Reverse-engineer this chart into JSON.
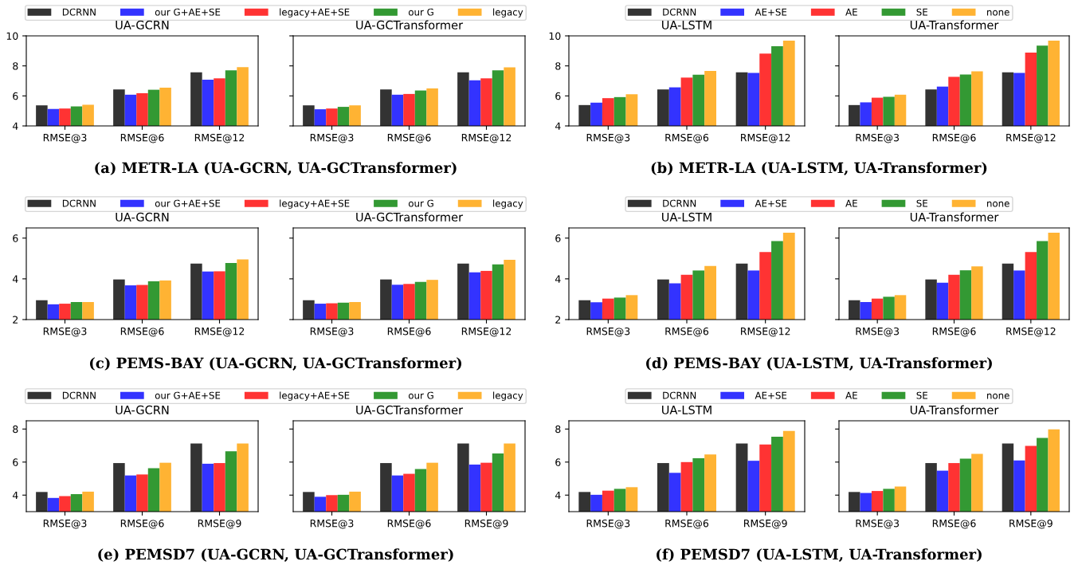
{
  "chart_data": [
    {
      "type": "bar",
      "title": "UA-GCRN",
      "categories": [
        "RMSE@3",
        "RMSE@6",
        "RMSE@12"
      ],
      "ylim": [
        4,
        10
      ],
      "yticks": [
        4,
        6,
        8,
        10
      ],
      "legend": "top right",
      "annotations": [
        "(a) METR-LA (UA-GCRN, UA-GCTransformer)"
      ],
      "series": [
        {
          "name": "DCRNN",
          "color": "#333333",
          "values": [
            5.37,
            6.43,
            7.57
          ]
        },
        {
          "name": "our G+AE+SE",
          "color": "#3333ff",
          "values": [
            5.13,
            6.08,
            7.08
          ]
        },
        {
          "name": "legacy+AE+SE",
          "color": "#ff3333",
          "values": [
            5.16,
            6.18,
            7.17
          ]
        },
        {
          "name": "our G",
          "color": "#339933",
          "values": [
            5.3,
            6.41,
            7.71
          ]
        },
        {
          "name": "legacy",
          "color": "#ffb333",
          "values": [
            5.41,
            6.55,
            7.92
          ]
        }
      ]
    },
    {
      "type": "bar",
      "title": "UA-GCTransformer",
      "categories": [
        "RMSE@3",
        "RMSE@6",
        "RMSE@12"
      ],
      "ylim": [
        4,
        10
      ],
      "yticks": [
        4,
        6,
        8,
        10
      ],
      "tick_labels": "x",
      "series": [
        {
          "color": "#333333",
          "values": [
            5.37,
            6.43,
            7.57
          ]
        },
        {
          "color": "#3333ff",
          "values": [
            5.11,
            6.08,
            7.04
          ]
        },
        {
          "color": "#ff3333",
          "values": [
            5.16,
            6.13,
            7.17
          ]
        },
        {
          "color": "#339933",
          "values": [
            5.27,
            6.36,
            7.71
          ]
        },
        {
          "color": "#ffb333",
          "values": [
            5.37,
            6.5,
            7.9
          ]
        }
      ]
    },
    {
      "type": "bar",
      "title": "UA-LSTM",
      "categories": [
        "RMSE@3",
        "RMSE@6",
        "RMSE@12"
      ],
      "ylim": [
        4,
        10
      ],
      "yticks": [
        4,
        6,
        8,
        10
      ],
      "legend": "top right",
      "annotations": [
        "(b) METR-LA (UA-LSTM, UA-Transformer)"
      ],
      "series": [
        {
          "name": "DCRNN",
          "color": "#333333",
          "values": [
            5.39,
            6.43,
            7.57
          ]
        },
        {
          "name": "AE+SE",
          "color": "#3333ff",
          "values": [
            5.55,
            6.57,
            7.53
          ]
        },
        {
          "name": "AE",
          "color": "#ff3333",
          "values": [
            5.85,
            7.22,
            8.82
          ]
        },
        {
          "name": "SE",
          "color": "#339933",
          "values": [
            5.92,
            7.41,
            9.31
          ]
        },
        {
          "name": "none",
          "color": "#ffb333",
          "values": [
            6.11,
            7.66,
            9.68
          ]
        }
      ]
    },
    {
      "type": "bar",
      "title": "UA-Transformer",
      "categories": [
        "RMSE@3",
        "RMSE@6",
        "RMSE@12"
      ],
      "ylim": [
        4,
        10
      ],
      "yticks": [
        4,
        6,
        8,
        10
      ],
      "tick_labels": "x",
      "series": [
        {
          "color": "#333333",
          "values": [
            5.39,
            6.43,
            7.57
          ]
        },
        {
          "color": "#3333ff",
          "values": [
            5.57,
            6.62,
            7.53
          ]
        },
        {
          "color": "#ff3333",
          "values": [
            5.88,
            7.27,
            8.88
          ]
        },
        {
          "color": "#339933",
          "values": [
            5.94,
            7.43,
            9.35
          ]
        },
        {
          "color": "#ffb333",
          "values": [
            6.08,
            7.64,
            9.68
          ]
        }
      ]
    },
    {
      "type": "bar",
      "title": "UA-GCRN",
      "categories": [
        "RMSE@3",
        "RMSE@6",
        "RMSE@12"
      ],
      "ylim": [
        2,
        6.5
      ],
      "yticks": [
        2,
        4,
        6
      ],
      "legend": "top right",
      "annotations": [
        "(c) PEMS-BAY (UA-GCRN, UA-GCTransformer)"
      ],
      "series": [
        {
          "name": "DCRNN",
          "color": "#333333",
          "values": [
            2.95,
            3.97,
            4.75
          ]
        },
        {
          "name": "our G+AE+SE",
          "color": "#3333ff",
          "values": [
            2.75,
            3.68,
            4.36
          ]
        },
        {
          "name": "legacy+AE+SE",
          "color": "#ff3333",
          "values": [
            2.78,
            3.7,
            4.37
          ]
        },
        {
          "name": "our G",
          "color": "#339933",
          "values": [
            2.86,
            3.88,
            4.78
          ]
        },
        {
          "name": "legacy",
          "color": "#ffb333",
          "values": [
            2.86,
            3.92,
            4.95
          ]
        }
      ]
    },
    {
      "type": "bar",
      "title": "UA-GCTransformer",
      "categories": [
        "RMSE@3",
        "RMSE@6",
        "RMSE@12"
      ],
      "ylim": [
        2,
        6.5
      ],
      "yticks": [
        2,
        4,
        6
      ],
      "tick_labels": "x",
      "series": [
        {
          "color": "#333333",
          "values": [
            2.95,
            3.97,
            4.75
          ]
        },
        {
          "color": "#3333ff",
          "values": [
            2.78,
            3.71,
            4.32
          ]
        },
        {
          "color": "#ff3333",
          "values": [
            2.8,
            3.75,
            4.39
          ]
        },
        {
          "color": "#339933",
          "values": [
            2.83,
            3.85,
            4.71
          ]
        },
        {
          "color": "#ffb333",
          "values": [
            2.86,
            3.95,
            4.93
          ]
        }
      ]
    },
    {
      "type": "bar",
      "title": "UA-LSTM",
      "categories": [
        "RMSE@3",
        "RMSE@6",
        "RMSE@12"
      ],
      "ylim": [
        2,
        6.5
      ],
      "yticks": [
        2,
        4,
        6
      ],
      "legend": "top right",
      "annotations": [
        "(d) PEMS-BAY (UA-LSTM, UA-Transformer)"
      ],
      "series": [
        {
          "name": "DCRNN",
          "color": "#333333",
          "values": [
            2.95,
            3.97,
            4.75
          ]
        },
        {
          "name": "AE+SE",
          "color": "#3333ff",
          "values": [
            2.85,
            3.78,
            4.41
          ]
        },
        {
          "name": "AE",
          "color": "#ff3333",
          "values": [
            3.03,
            4.2,
            5.32
          ]
        },
        {
          "name": "SE",
          "color": "#339933",
          "values": [
            3.08,
            4.41,
            5.85
          ]
        },
        {
          "name": "none",
          "color": "#ffb333",
          "values": [
            3.2,
            4.63,
            6.27
          ]
        }
      ]
    },
    {
      "type": "bar",
      "title": "UA-Transformer",
      "categories": [
        "RMSE@3",
        "RMSE@6",
        "RMSE@12"
      ],
      "ylim": [
        2,
        6.5
      ],
      "yticks": [
        2,
        4,
        6
      ],
      "tick_labels": "x",
      "series": [
        {
          "color": "#333333",
          "values": [
            2.95,
            3.97,
            4.75
          ]
        },
        {
          "color": "#3333ff",
          "values": [
            2.86,
            3.81,
            4.41
          ]
        },
        {
          "color": "#ff3333",
          "values": [
            3.03,
            4.2,
            5.32
          ]
        },
        {
          "color": "#339933",
          "values": [
            3.12,
            4.42,
            5.85
          ]
        },
        {
          "color": "#ffb333",
          "values": [
            3.2,
            4.61,
            6.27
          ]
        }
      ]
    },
    {
      "type": "bar",
      "title": "UA-GCRN",
      "categories": [
        "RMSE@3",
        "RMSE@6",
        "RMSE@9"
      ],
      "ylim": [
        3,
        8.5
      ],
      "yticks": [
        4,
        6,
        8
      ],
      "legend": "top right",
      "annotations": [
        "(e) PEMSD7 (UA-GCRN, UA-GCTransformer)"
      ],
      "series": [
        {
          "name": "DCRNN",
          "color": "#333333",
          "values": [
            4.19,
            5.94,
            7.13
          ]
        },
        {
          "name": "our G+AE+SE",
          "color": "#3333ff",
          "values": [
            3.83,
            5.19,
            5.9
          ]
        },
        {
          "name": "legacy+AE+SE",
          "color": "#ff3333",
          "values": [
            3.94,
            5.25,
            5.94
          ]
        },
        {
          "name": "our G",
          "color": "#339933",
          "values": [
            4.06,
            5.63,
            6.65
          ]
        },
        {
          "name": "legacy",
          "color": "#ffb333",
          "values": [
            4.21,
            5.96,
            7.13
          ]
        }
      ]
    },
    {
      "type": "bar",
      "title": "UA-GCTransformer",
      "categories": [
        "RMSE@3",
        "RMSE@6",
        "RMSE@9"
      ],
      "ylim": [
        3,
        8.5
      ],
      "yticks": [
        4,
        6,
        8
      ],
      "tick_labels": "x",
      "series": [
        {
          "color": "#333333",
          "values": [
            4.19,
            5.94,
            7.13
          ]
        },
        {
          "color": "#3333ff",
          "values": [
            3.9,
            5.19,
            5.85
          ]
        },
        {
          "color": "#ff3333",
          "values": [
            4.0,
            5.29,
            5.96
          ]
        },
        {
          "color": "#339933",
          "values": [
            4.02,
            5.58,
            6.52
          ]
        },
        {
          "color": "#ffb333",
          "values": [
            4.21,
            5.96,
            7.13
          ]
        }
      ]
    },
    {
      "type": "bar",
      "title": "UA-LSTM",
      "categories": [
        "RMSE@3",
        "RMSE@6",
        "RMSE@9"
      ],
      "ylim": [
        3,
        8.5
      ],
      "yticks": [
        4,
        6,
        8
      ],
      "legend": "top right",
      "annotations": [
        "(f) PEMSD7 (UA-LSTM, UA-Transformer)"
      ],
      "series": [
        {
          "name": "DCRNN",
          "color": "#333333",
          "values": [
            4.19,
            5.94,
            7.13
          ]
        },
        {
          "name": "AE+SE",
          "color": "#3333ff",
          "values": [
            4.02,
            5.35,
            6.08
          ]
        },
        {
          "name": "AE",
          "color": "#ff3333",
          "values": [
            4.27,
            6.0,
            7.06
          ]
        },
        {
          "name": "SE",
          "color": "#339933",
          "values": [
            4.38,
            6.23,
            7.54
          ]
        },
        {
          "name": "none",
          "color": "#ffb333",
          "values": [
            4.48,
            6.46,
            7.88
          ]
        }
      ]
    },
    {
      "type": "bar",
      "title": "UA-Transformer",
      "categories": [
        "RMSE@3",
        "RMSE@6",
        "RMSE@9"
      ],
      "ylim": [
        3,
        8.5
      ],
      "yticks": [
        4,
        6,
        8
      ],
      "tick_labels": "x",
      "series": [
        {
          "color": "#333333",
          "values": [
            4.19,
            5.94,
            7.13
          ]
        },
        {
          "color": "#3333ff",
          "values": [
            4.13,
            5.48,
            6.1
          ]
        },
        {
          "color": "#ff3333",
          "values": [
            4.25,
            5.94,
            6.98
          ]
        },
        {
          "color": "#339933",
          "values": [
            4.38,
            6.21,
            7.46
          ]
        },
        {
          "color": "#ffb333",
          "values": [
            4.52,
            6.5,
            7.98
          ]
        }
      ]
    }
  ]
}
